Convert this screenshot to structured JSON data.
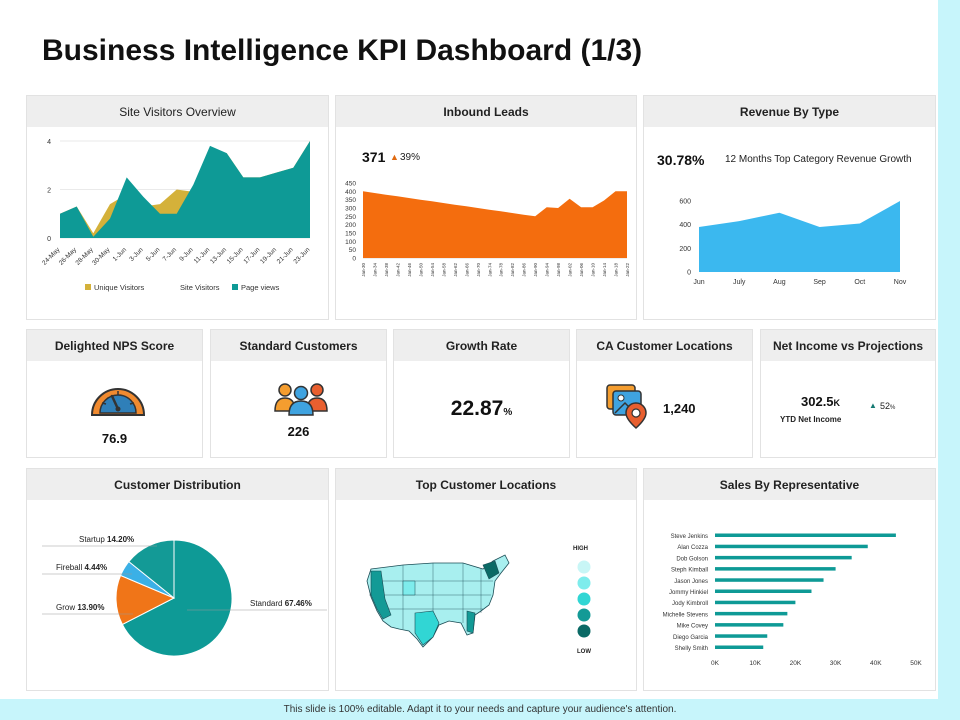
{
  "page": {
    "title": "Business Intelligence KPI Dashboard (1/3)",
    "footer": "This slide is 100% editable.  Adapt it to your needs and capture your audience's attention."
  },
  "colors": {
    "teal": "#0e9a96",
    "gold": "#d4b13a",
    "orange": "#f46d0e",
    "sky": "#3bb8ef",
    "darkteal": "#157a73"
  },
  "site_visitors": {
    "title": "Site Visitors Overview",
    "chart_data": {
      "type": "area",
      "title": "Site Visitors Overview",
      "ylim": [
        0,
        4
      ],
      "y_ticks": [
        "4",
        "2",
        "0"
      ],
      "x": [
        "24-May",
        "26-May",
        "28-May",
        "30-May",
        "1-Jun",
        "3-Jun",
        "5-Jun",
        "7-Jun",
        "9-Jun",
        "11-Jun",
        "13-Jun",
        "15-Jun",
        "17-Jun",
        "19-Jun",
        "21-Jun",
        "23-Jun"
      ],
      "series": [
        {
          "name": "Unique Visitors",
          "values": [
            1.0,
            1.3,
            0.2,
            1.4,
            1.8,
            1.3,
            1.4,
            2.0,
            1.9,
            3.6,
            3.5,
            2.5,
            2.5,
            2.7,
            2.9,
            4.0
          ]
        },
        {
          "name": "Site Visitors",
          "values": [
            0,
            0,
            0,
            0,
            0,
            0,
            0,
            0,
            0,
            0,
            0,
            0,
            0,
            0,
            0,
            0
          ]
        },
        {
          "name": "Page views",
          "values": [
            1.0,
            1.3,
            0.05,
            0.8,
            2.5,
            1.7,
            1.0,
            1.0,
            2.2,
            3.8,
            3.5,
            2.5,
            2.5,
            2.7,
            2.9,
            4.0
          ]
        }
      ],
      "legend": [
        "Unique Visitors",
        "Site Visitors",
        "Page views"
      ]
    }
  },
  "inbound_leads": {
    "title": "Inbound Leads",
    "value": "371",
    "change": "39%",
    "chart_data": {
      "type": "area",
      "ylim": [
        0,
        450
      ],
      "y_ticks": [
        "450",
        "400",
        "350",
        "300",
        "250",
        "200",
        "150",
        "100",
        "50",
        "0"
      ],
      "x": [
        "Jan-30",
        "Jan-34",
        "Jan-38",
        "Jan-42",
        "Jan-46",
        "Jan-50",
        "Jan-54",
        "Jan-58",
        "Jan-62",
        "Jan-66",
        "Jan-70",
        "Jan-74",
        "Jan-78",
        "Jan-82",
        "Jan-86",
        "Jan-90",
        "Jan-94",
        "Jan-98",
        "Jan-02",
        "Jan-06",
        "Jan-10",
        "Jan-14",
        "Jan-18",
        "Jan-22"
      ],
      "values": [
        400,
        390,
        380,
        370,
        360,
        350,
        340,
        330,
        320,
        310,
        300,
        290,
        280,
        270,
        260,
        250,
        305,
        300,
        355,
        305,
        305,
        345,
        400,
        400
      ]
    }
  },
  "revenue_by_type": {
    "title": "Revenue By Type",
    "value": "30.78%",
    "caption": "12 Months Top Category Revenue Growth",
    "chart_data": {
      "type": "area",
      "ylim": [
        0,
        600
      ],
      "y_ticks": [
        "600",
        "400",
        "200",
        "0"
      ],
      "categories": [
        "Jun",
        "July",
        "Aug",
        "Sep",
        "Oct",
        "Nov"
      ],
      "values": [
        380,
        430,
        500,
        380,
        410,
        600
      ]
    }
  },
  "nps": {
    "title": "Delighted NPS Score",
    "value": "76.9"
  },
  "standard_customers": {
    "title": "Standard Customers",
    "value": "226"
  },
  "growth_rate": {
    "title": "Growth Rate",
    "value": "22.87",
    "unit": "%"
  },
  "ca_locations": {
    "title": "CA Customer Locations",
    "value": "1,240"
  },
  "net_income": {
    "title": "Net Income vs Projections",
    "value": "302.5",
    "suffix": "K",
    "label": "YTD Net Income",
    "change": "52",
    "change_unit": "%"
  },
  "customer_distribution": {
    "title": "Customer Distribution",
    "chart_data": {
      "type": "pie",
      "slices": [
        {
          "label": "Standard",
          "value": 67.46,
          "display": "67.46%"
        },
        {
          "label": "Grow",
          "value": 13.9,
          "display": "13.90%"
        },
        {
          "label": "Fireball",
          "value": 4.44,
          "display": "4.44%"
        },
        {
          "label": "Startup",
          "value": 14.2,
          "display": "14.20%"
        }
      ]
    }
  },
  "top_locations": {
    "title": "Top Customer Locations",
    "legend_high": "HIGH",
    "legend_low": "LOW",
    "legend_colors": [
      "#c8f6f6",
      "#7eecec",
      "#31d6d4",
      "#139a96",
      "#0b6a66"
    ]
  },
  "sales_by_rep": {
    "title": "Sales By Representative",
    "chart_data": {
      "type": "bar",
      "orientation": "horizontal",
      "xlim": [
        0,
        50000
      ],
      "x_ticks": [
        "0K",
        "10K",
        "20K",
        "30K",
        "40K",
        "50K"
      ],
      "categories": [
        "Steve Jenkins",
        "Alan Cozza",
        "Dob Golson",
        "Steph Kimball",
        "Jason Jones",
        "Jommy Hinkiel",
        "Jody Kimbroll",
        "Michelle Stevens",
        "Mike Covey",
        "Diego Garcia",
        "Shelly Smith"
      ],
      "values": [
        45000,
        38000,
        34000,
        30000,
        27000,
        24000,
        20000,
        18000,
        17000,
        13000,
        12000
      ]
    }
  }
}
